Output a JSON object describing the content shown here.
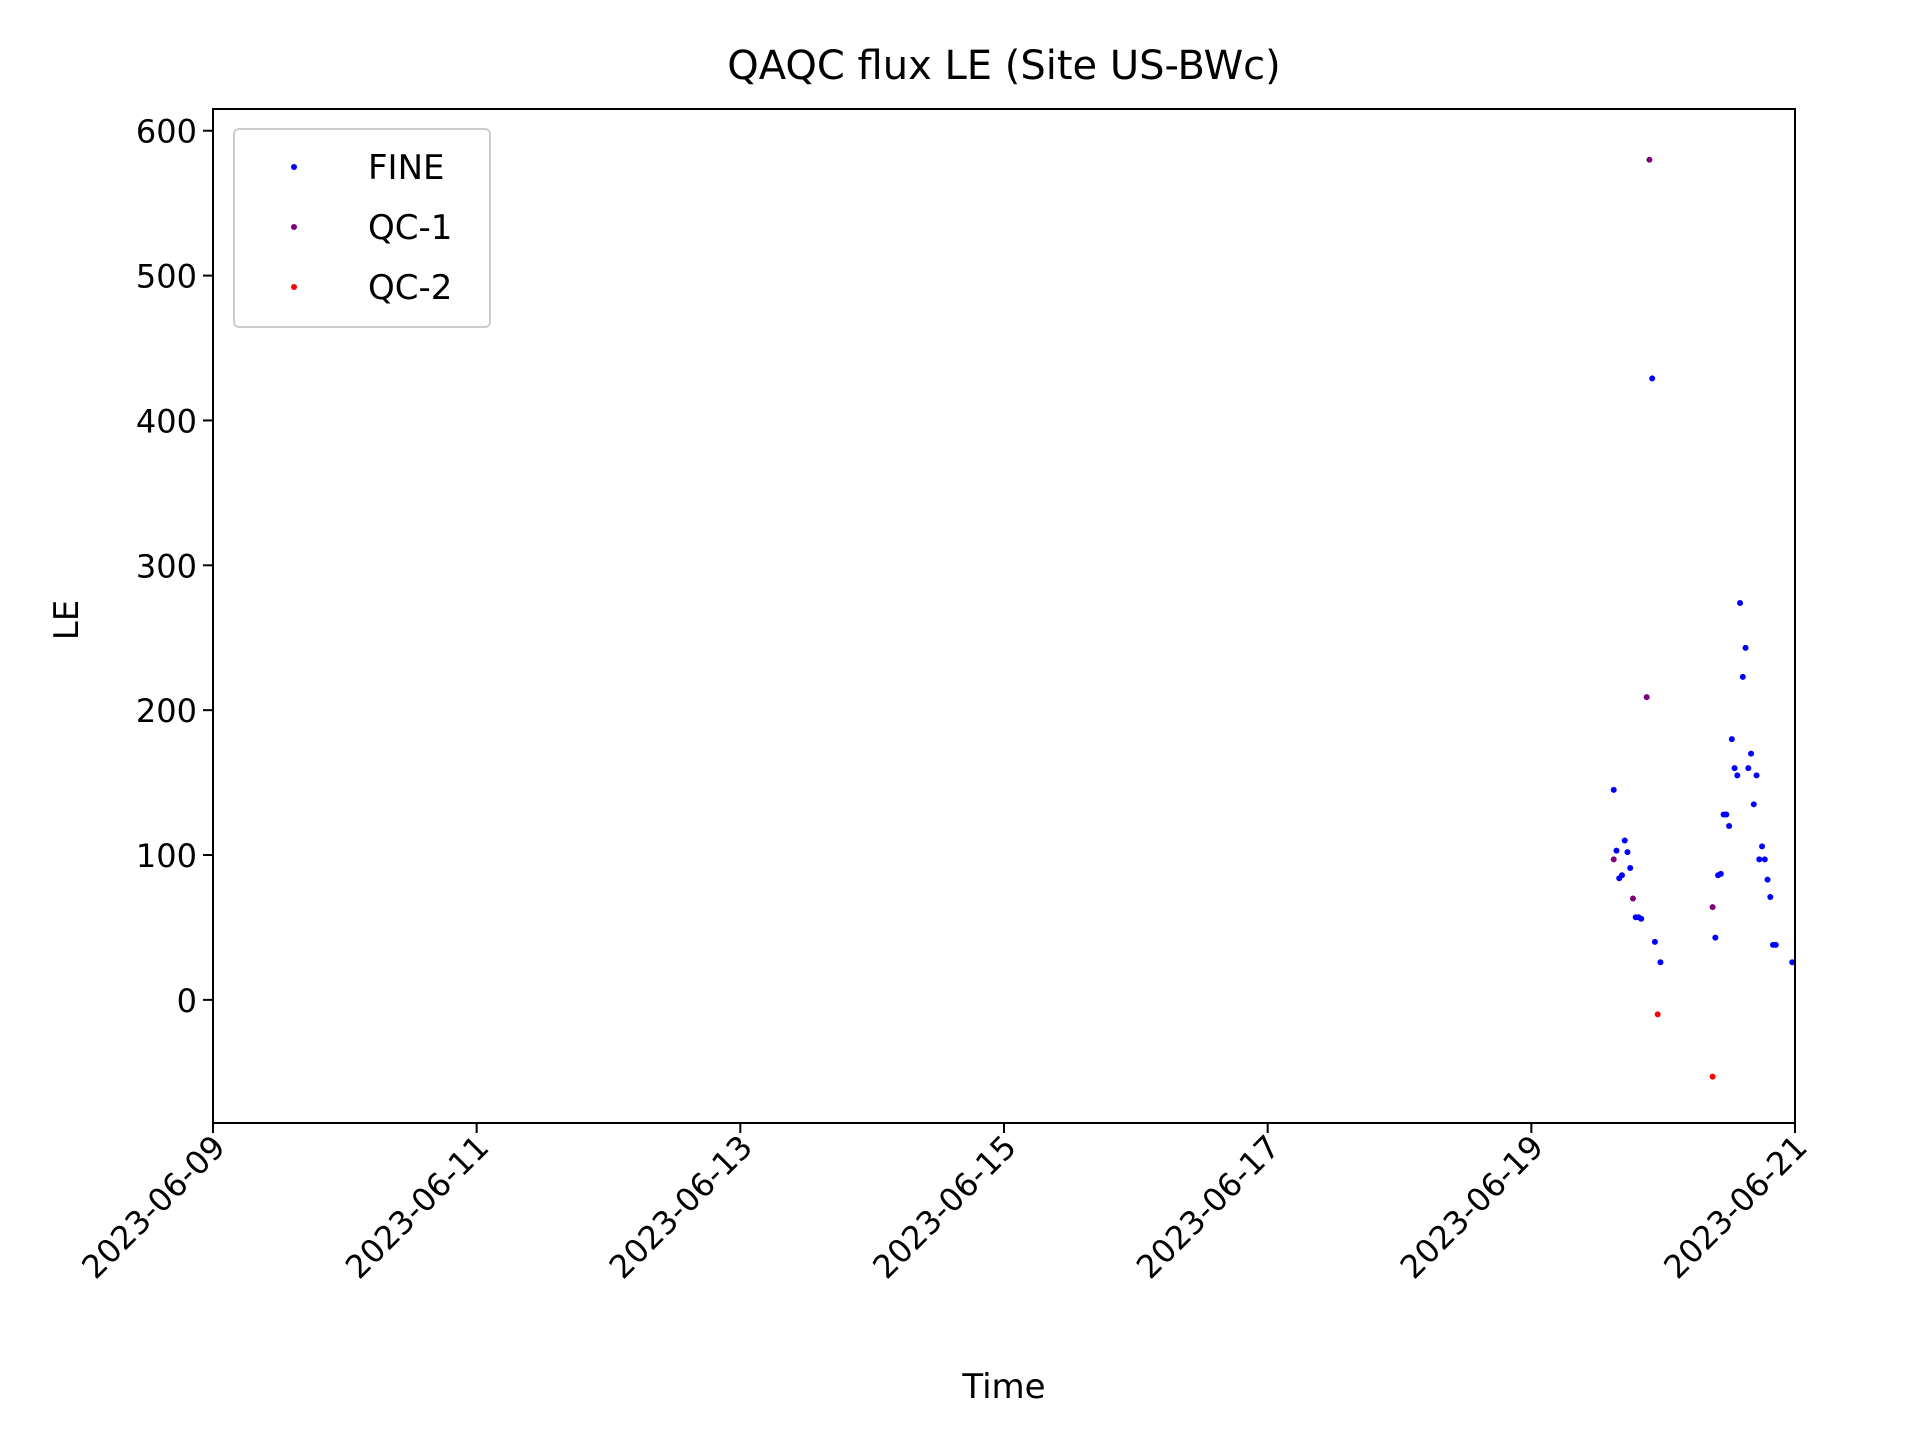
{
  "chart_data": {
    "type": "scatter",
    "title": "QAQC flux LE (Site US-BWc)",
    "xlabel": "Time",
    "ylabel": "LE",
    "x_axis_type": "date",
    "xlim": [
      "2023-06-09T00:00",
      "2023-06-21T00:00"
    ],
    "ylim": [
      -85,
      615
    ],
    "x_ticks": [
      "2023-06-09",
      "2023-06-11",
      "2023-06-13",
      "2023-06-15",
      "2023-06-17",
      "2023-06-19",
      "2023-06-21"
    ],
    "y_ticks": [
      0,
      100,
      200,
      300,
      400,
      500,
      600
    ],
    "grid": false,
    "legend_position": "top-left",
    "series": [
      {
        "name": "FINE",
        "color": "#0000ff",
        "points": [
          {
            "x": "2023-06-19T15:00",
            "y": 145
          },
          {
            "x": "2023-06-19T15:30",
            "y": 103
          },
          {
            "x": "2023-06-19T16:00",
            "y": 84
          },
          {
            "x": "2023-06-19T16:30",
            "y": 86
          },
          {
            "x": "2023-06-19T17:00",
            "y": 110
          },
          {
            "x": "2023-06-19T17:30",
            "y": 102
          },
          {
            "x": "2023-06-19T18:00",
            "y": 91
          },
          {
            "x": "2023-06-19T19:00",
            "y": 57
          },
          {
            "x": "2023-06-19T19:30",
            "y": 57
          },
          {
            "x": "2023-06-19T20:00",
            "y": 56
          },
          {
            "x": "2023-06-19T22:00",
            "y": 429
          },
          {
            "x": "2023-06-19T22:30",
            "y": 40
          },
          {
            "x": "2023-06-19T23:30",
            "y": 26
          },
          {
            "x": "2023-06-20T09:30",
            "y": 43
          },
          {
            "x": "2023-06-20T10:00",
            "y": 86
          },
          {
            "x": "2023-06-20T10:30",
            "y": 87
          },
          {
            "x": "2023-06-20T11:00",
            "y": 128
          },
          {
            "x": "2023-06-20T11:30",
            "y": 128
          },
          {
            "x": "2023-06-20T12:00",
            "y": 120
          },
          {
            "x": "2023-06-20T12:30",
            "y": 180
          },
          {
            "x": "2023-06-20T13:00",
            "y": 160
          },
          {
            "x": "2023-06-20T13:30",
            "y": 155
          },
          {
            "x": "2023-06-20T14:00",
            "y": 274
          },
          {
            "x": "2023-06-20T14:30",
            "y": 223
          },
          {
            "x": "2023-06-20T15:00",
            "y": 243
          },
          {
            "x": "2023-06-20T15:30",
            "y": 160
          },
          {
            "x": "2023-06-20T16:00",
            "y": 170
          },
          {
            "x": "2023-06-20T16:30",
            "y": 135
          },
          {
            "x": "2023-06-20T17:00",
            "y": 155
          },
          {
            "x": "2023-06-20T17:30",
            "y": 97
          },
          {
            "x": "2023-06-20T18:00",
            "y": 106
          },
          {
            "x": "2023-06-20T18:30",
            "y": 97
          },
          {
            "x": "2023-06-20T19:00",
            "y": 83
          },
          {
            "x": "2023-06-20T19:30",
            "y": 71
          },
          {
            "x": "2023-06-20T20:00",
            "y": 38
          },
          {
            "x": "2023-06-20T20:30",
            "y": 38
          },
          {
            "x": "2023-06-20T23:30",
            "y": 26
          }
        ]
      },
      {
        "name": "QC-1",
        "color": "#800080",
        "points": [
          {
            "x": "2023-06-19T15:00",
            "y": 97
          },
          {
            "x": "2023-06-19T18:30",
            "y": 70
          },
          {
            "x": "2023-06-19T21:00",
            "y": 209
          },
          {
            "x": "2023-06-19T21:30",
            "y": 580
          },
          {
            "x": "2023-06-20T09:00",
            "y": 64
          }
        ]
      },
      {
        "name": "QC-2",
        "color": "#ff0000",
        "points": [
          {
            "x": "2023-06-19T23:00",
            "y": -10
          },
          {
            "x": "2023-06-20T09:00",
            "y": -53
          }
        ]
      }
    ]
  }
}
